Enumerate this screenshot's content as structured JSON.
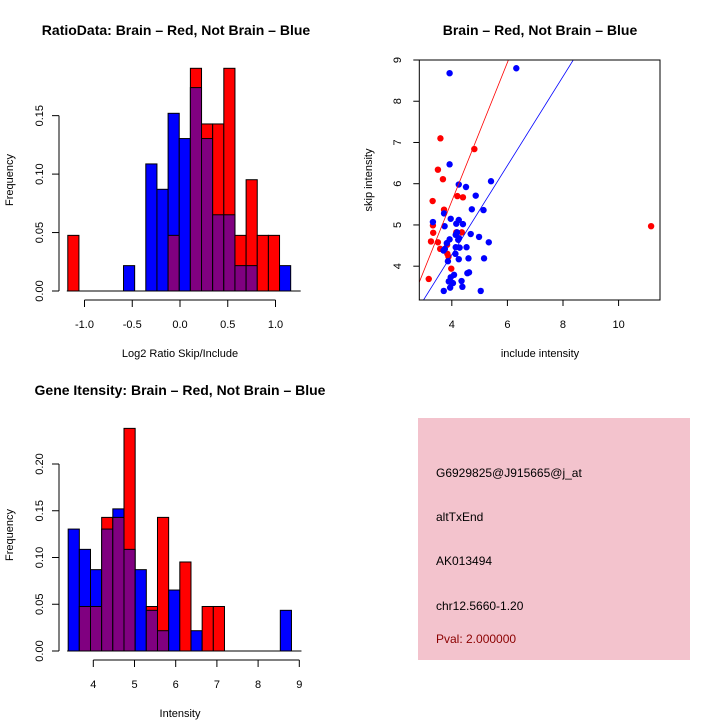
{
  "colors": {
    "red": "#ff0000",
    "blue": "#0000ff",
    "overlap": "#800080",
    "panel": "#f3c3cd",
    "pval": "#8b0000"
  },
  "chart_data": [
    {
      "type": "bar",
      "subtype": "overlaid-histogram",
      "title": "RatioData: Brain – Red, Not Brain – Blue",
      "xlabel": "Log2 Ratio Skip/Include",
      "ylabel": "Frequency",
      "bin_start": -1.175,
      "bin_width": 0.1167,
      "xticks": [
        "-1.0",
        "-0.5",
        "0.0",
        "0.5",
        "1.0"
      ],
      "xtick_values": [
        -1.0,
        -0.5,
        0.0,
        0.5,
        1.0
      ],
      "yticks": [
        "0.00",
        "0.05",
        "0.10",
        "0.15"
      ],
      "ytick_values": [
        0,
        0.05,
        0.1,
        0.15
      ],
      "series": [
        {
          "name": "Brain",
          "color": "red",
          "values": [
            0.0476,
            0,
            0,
            0,
            0,
            0,
            0,
            0,
            0,
            0.0476,
            0,
            0.1905,
            0.1429,
            0.1429,
            0.1905,
            0.0476,
            0.0952,
            0.0476,
            0.0476,
            0
          ]
        },
        {
          "name": "Not Brain",
          "color": "blue",
          "values": [
            0,
            0,
            0,
            0,
            0,
            0.0217,
            0,
            0.1087,
            0.087,
            0.152,
            0.1304,
            0.174,
            0.1304,
            0.0652,
            0.0652,
            0.0217,
            0.0217,
            0,
            0,
            0.0217
          ]
        }
      ]
    },
    {
      "type": "scatter",
      "title": "Brain – Red, Not Brain – Blue",
      "xlabel": "include intensity",
      "ylabel": "skip intensity",
      "xlim": [
        2.83,
        11.49
      ],
      "ylim": [
        3.18,
        9.0
      ],
      "xticks": [
        "4",
        "6",
        "8",
        "10"
      ],
      "xtick_values": [
        4,
        6,
        8,
        10
      ],
      "yticks": [
        "4",
        "5",
        "6",
        "7",
        "8",
        "9"
      ],
      "ytick_values": [
        4,
        5,
        6,
        7,
        8,
        9
      ],
      "series": [
        {
          "name": "Brain",
          "color": "red",
          "line": {
            "slope": 1.68,
            "intercept": -1.14
          },
          "points": [
            [
              3.59,
              7.1
            ],
            [
              4.81,
              6.84
            ],
            [
              3.5,
              6.34
            ],
            [
              3.68,
              6.11
            ],
            [
              3.31,
              5.58
            ],
            [
              4.2,
              5.7
            ],
            [
              4.4,
              5.67
            ],
            [
              3.72,
              5.37
            ],
            [
              3.32,
              4.99
            ],
            [
              3.33,
              4.81
            ],
            [
              3.25,
              4.6
            ],
            [
              3.5,
              4.58
            ],
            [
              3.58,
              4.42
            ],
            [
              3.83,
              4.52
            ],
            [
              3.84,
              4.3
            ],
            [
              3.88,
              4.23
            ],
            [
              3.98,
              3.94
            ],
            [
              3.17,
              3.69
            ],
            [
              4.16,
              4.82
            ],
            [
              4.36,
              4.82
            ],
            [
              11.17,
              4.97
            ]
          ]
        },
        {
          "name": "Not Brain",
          "color": "blue",
          "line": {
            "slope": 1.08,
            "intercept": -0.04
          },
          "points": [
            [
              6.32,
              8.8
            ],
            [
              3.92,
              8.68
            ],
            [
              3.92,
              6.47
            ],
            [
              4.25,
              5.98
            ],
            [
              4.51,
              5.92
            ],
            [
              5.41,
              6.06
            ],
            [
              4.86,
              5.71
            ],
            [
              4.72,
              5.38
            ],
            [
              5.14,
              5.36
            ],
            [
              3.72,
              5.28
            ],
            [
              3.32,
              5.07
            ],
            [
              3.74,
              4.97
            ],
            [
              3.96,
              5.15
            ],
            [
              4.16,
              5.03
            ],
            [
              4.25,
              5.12
            ],
            [
              4.4,
              5.02
            ],
            [
              4.14,
              4.76
            ],
            [
              4.26,
              4.68
            ],
            [
              4.68,
              4.78
            ],
            [
              4.98,
              4.71
            ],
            [
              5.33,
              4.58
            ],
            [
              3.92,
              4.65
            ],
            [
              3.82,
              4.56
            ],
            [
              3.7,
              4.38
            ],
            [
              4.14,
              4.46
            ],
            [
              4.28,
              4.45
            ],
            [
              4.53,
              4.46
            ],
            [
              4.13,
              4.3
            ],
            [
              4.25,
              4.17
            ],
            [
              4.6,
              4.19
            ],
            [
              5.16,
              4.19
            ],
            [
              3.86,
              4.12
            ],
            [
              4.08,
              3.79
            ],
            [
              3.96,
              3.73
            ],
            [
              4.56,
              3.83
            ],
            [
              4.62,
              3.85
            ],
            [
              3.89,
              3.63
            ],
            [
              4.35,
              3.64
            ],
            [
              4.38,
              3.5
            ],
            [
              3.94,
              3.48
            ],
            [
              3.71,
              3.4
            ],
            [
              5.04,
              3.4
            ],
            [
              4.23,
              4.64
            ],
            [
              4.19,
              4.82
            ],
            [
              3.75,
              4.42
            ],
            [
              4.04,
              3.59
            ]
          ]
        }
      ]
    },
    {
      "type": "bar",
      "subtype": "overlaid-histogram",
      "title": "Gene Itensity: Brain – Red, Not Brain – Blue",
      "xlabel": "Intensity",
      "ylabel": "Frequency",
      "bin_start": 3.39,
      "bin_width": 0.271,
      "xticks": [
        "4",
        "5",
        "6",
        "7",
        "8",
        "9"
      ],
      "xtick_values": [
        4,
        5,
        6,
        7,
        8,
        9
      ],
      "yticks": [
        "0.00",
        "0.05",
        "0.10",
        "0.15",
        "0.20"
      ],
      "ytick_values": [
        0,
        0.05,
        0.1,
        0.15,
        0.2
      ],
      "series": [
        {
          "name": "Brain",
          "color": "red",
          "values": [
            0,
            0.0476,
            0.0476,
            0.1429,
            0.1429,
            0.2381,
            0,
            0.0476,
            0.1429,
            0,
            0.0952,
            0,
            0.0476,
            0.0476,
            0,
            0,
            0,
            0,
            0,
            0
          ]
        },
        {
          "name": "Not Brain",
          "color": "blue",
          "values": [
            0.1304,
            0.1087,
            0.087,
            0.1304,
            0.152,
            0.1087,
            0.087,
            0.0435,
            0.0217,
            0.0652,
            0,
            0.0217,
            0,
            0,
            0,
            0,
            0,
            0,
            0,
            0.0435
          ]
        }
      ]
    }
  ],
  "info": {
    "probe": "G6929825@J915665@j_at",
    "event": "altTxEnd",
    "accession": "AK013494",
    "location": "chr12.5660-1.20",
    "pval": "Pval: 2.000000"
  }
}
